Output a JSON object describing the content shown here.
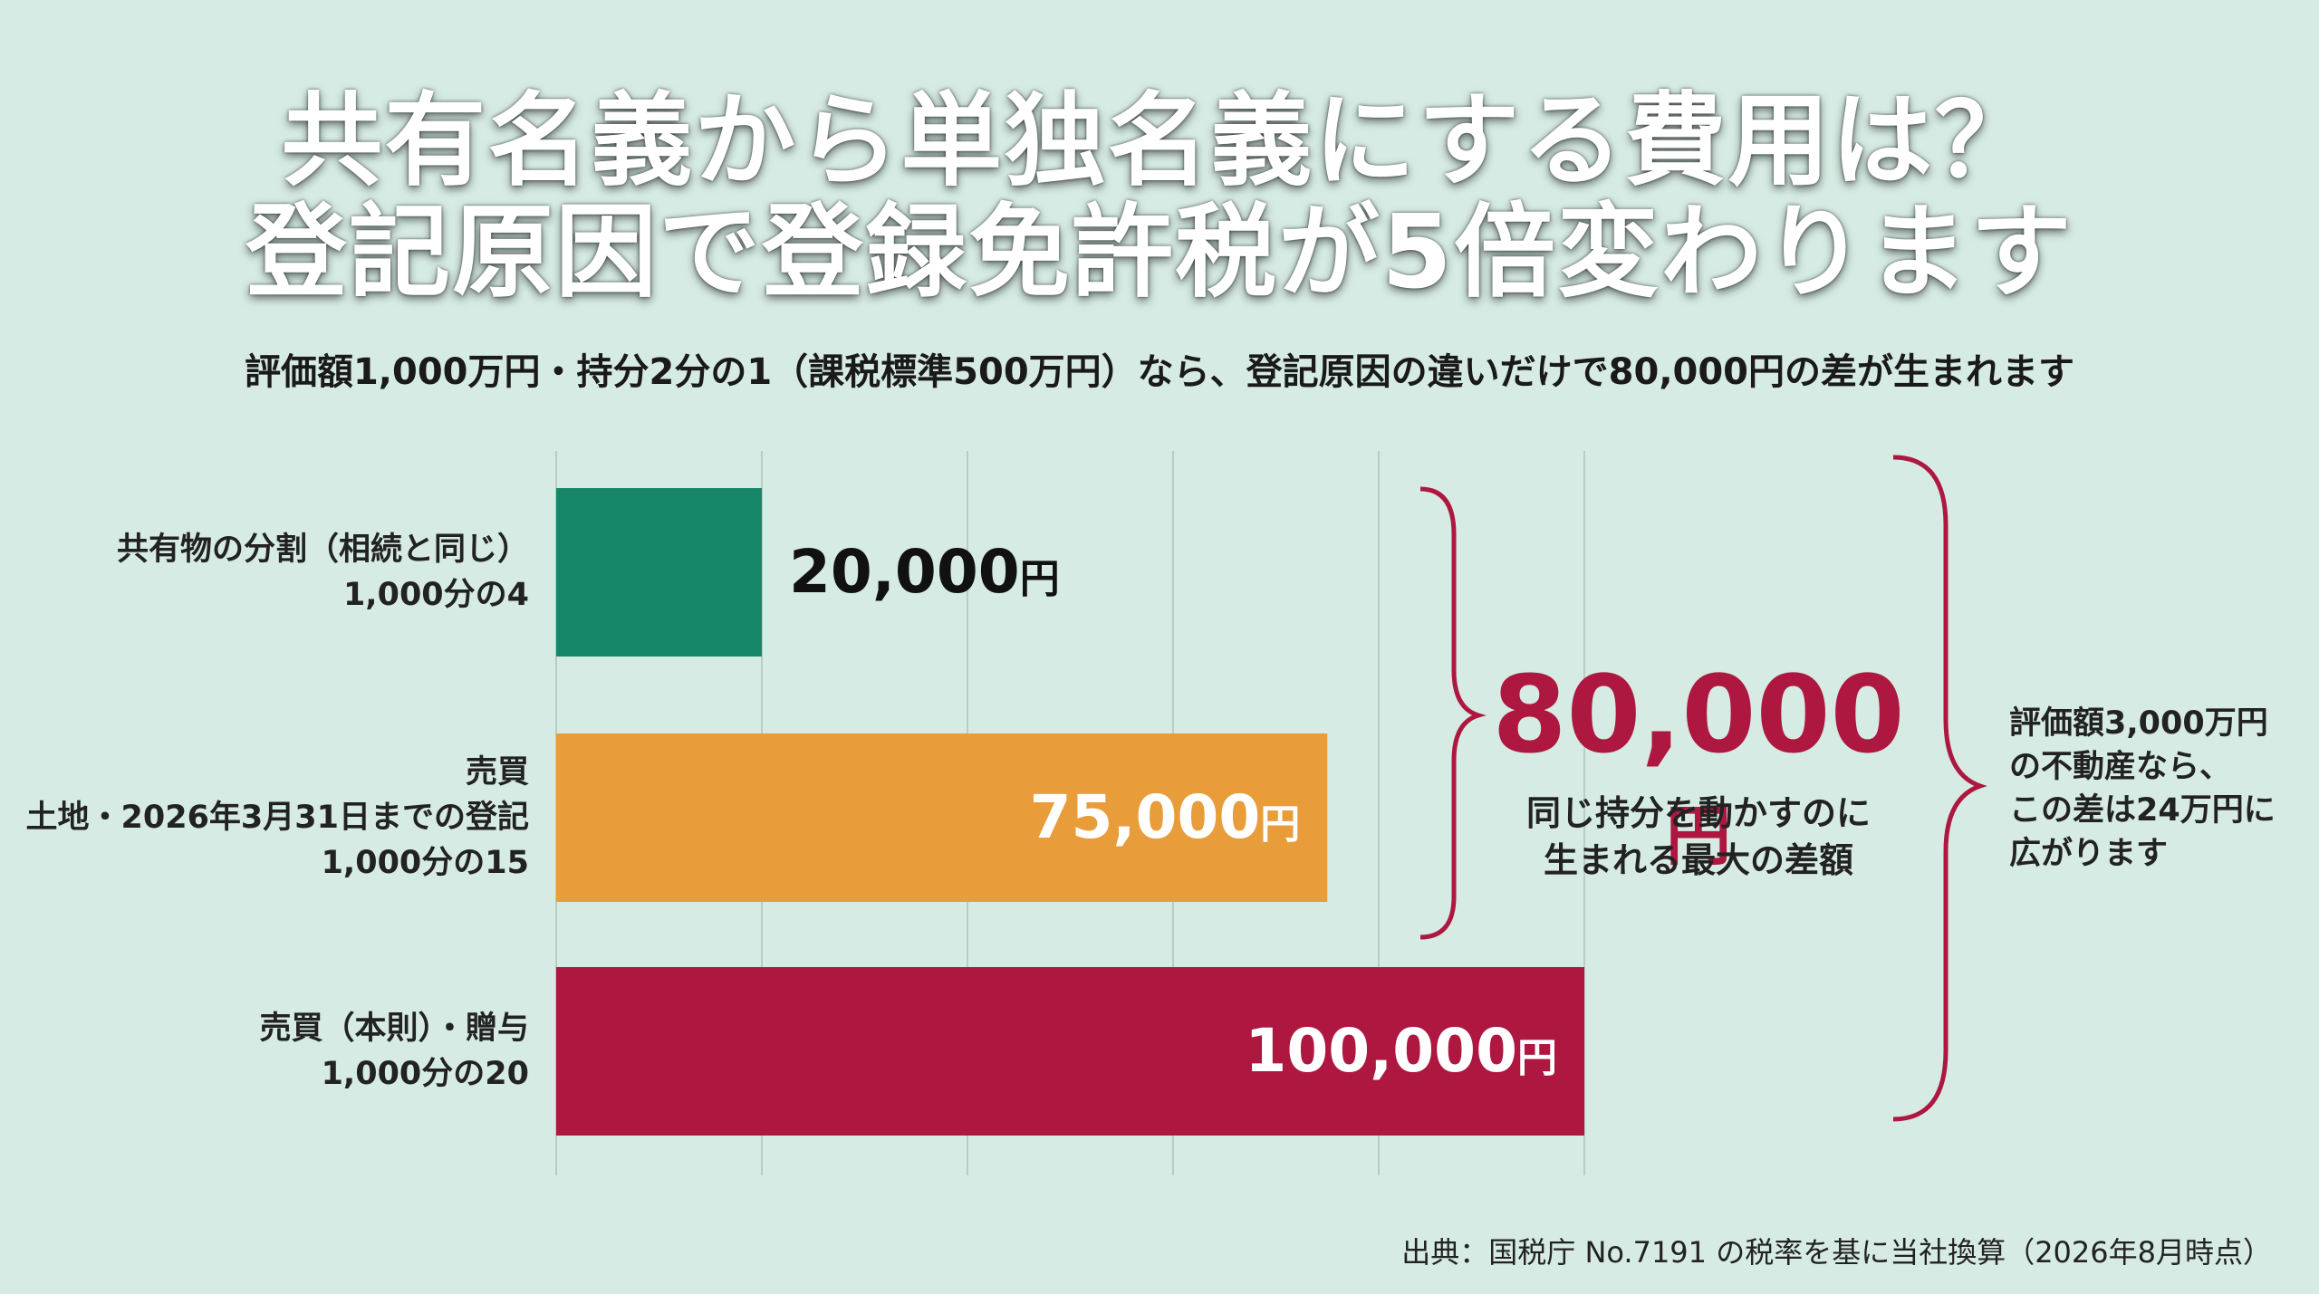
{
  "chart_data": {
    "type": "bar",
    "orientation": "horizontal",
    "title": [
      "共有名義から単独名義にする費用は？",
      "登記原因で登録免許税が5倍変わります"
    ],
    "subtitle": "評価額1,000万円・持分2分の1（課税標準500万円）なら、登記原因の違いだけで80,000円の差が生まれます",
    "categories": [
      "共有物の分割（相続と同じ）\n1,000分の4",
      "売買\n土地・2026年3月31日までの登記\n1,000分の15",
      "売買（本則）・贈与\n1,000分の20"
    ],
    "values": [
      20000,
      75000,
      100000
    ],
    "value_labels": [
      "20,000円",
      "75,000円",
      "100,000円"
    ],
    "colors": [
      "#17876a",
      "#e89d3a",
      "#ad1740"
    ],
    "xlim": [
      0,
      100000
    ],
    "xticks": [
      0,
      20000,
      40000,
      60000,
      80000,
      100000
    ],
    "grid": true,
    "annotations": {
      "difference": "80,000円",
      "difference_note": "同じ持分を動かすのに\n生まれる最大の差額",
      "side_note": "評価額3,000万円\nの不動産なら、\nこの差は24万円に\n広がります"
    },
    "source": "出典：国税庁 No.7191 の税率を基に当社換算（2026年8月時点）"
  }
}
